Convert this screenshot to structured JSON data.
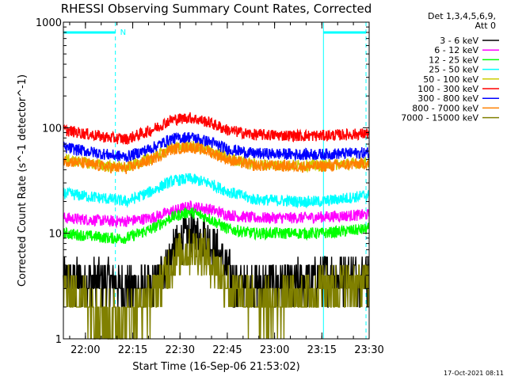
{
  "chart_data": {
    "type": "line",
    "title": "RHESSI Observing Summary Count Rates, Corrected",
    "xlabel": "Start Time (16-Sep-06 21:53:02)",
    "ylabel": "Corrected Count Rate (s^-1 detector^-1)",
    "y_scale": "log",
    "ylim": [
      1,
      1000
    ],
    "y_ticks": [
      {
        "value": 1,
        "label": "1"
      },
      {
        "value": 10,
        "label": "10"
      },
      {
        "value": 100,
        "label": "100"
      },
      {
        "value": 1000,
        "label": "1000"
      }
    ],
    "x_range_minutes": [
      0,
      97
    ],
    "x_ticks": [
      {
        "minute": 7,
        "label": "22:00"
      },
      {
        "minute": 22,
        "label": "22:15"
      },
      {
        "minute": 37,
        "label": "22:30"
      },
      {
        "minute": 52,
        "label": "22:45"
      },
      {
        "minute": 67,
        "label": "23:00"
      },
      {
        "minute": 82,
        "label": "23:15"
      },
      {
        "minute": 97,
        "label": "23:30"
      }
    ],
    "legend_header": [
      "Det 1,3,4,5,6,9,",
      "Att 0"
    ],
    "night_marker": "N",
    "solid_vertical_lines_minutes": [
      0,
      82.5
    ],
    "dashed_vertical_lines_minutes": [
      16.5,
      96
    ],
    "orbit_bars": [
      [
        0,
        16.5
      ],
      [
        82.5,
        96
      ]
    ],
    "series": [
      {
        "name": "3 - 6 keV",
        "color": "#000000",
        "x": [
          0,
          15,
          20,
          28,
          31,
          34,
          37,
          40,
          43,
          46,
          49,
          52,
          55,
          65,
          80,
          82,
          97
        ],
        "values": [
          3.5,
          3.5,
          3.0,
          3.0,
          4.0,
          6.0,
          8.5,
          9.5,
          9.5,
          8.5,
          6.5,
          4.5,
          3.2,
          3.2,
          3.5,
          4.0,
          4.0
        ]
      },
      {
        "name": "6 - 12 keV",
        "color": "#ff00ff",
        "x": [
          0,
          15,
          20,
          28,
          34,
          40,
          46,
          52,
          60,
          75,
          97
        ],
        "values": [
          14,
          13,
          13,
          14,
          16,
          18,
          17,
          15,
          14,
          14,
          15
        ]
      },
      {
        "name": "12 - 25 keV",
        "color": "#00ff00",
        "x": [
          0,
          15,
          20,
          28,
          34,
          40,
          46,
          52,
          60,
          75,
          82,
          97
        ],
        "values": [
          10,
          9,
          9,
          11,
          14,
          16,
          14,
          11,
          10,
          10,
          10,
          11
        ]
      },
      {
        "name": "25 - 50 keV",
        "color": "#00ffff",
        "x": [
          0,
          15,
          20,
          28,
          34,
          40,
          46,
          52,
          60,
          75,
          82,
          97
        ],
        "values": [
          24,
          21,
          20,
          25,
          31,
          33,
          30,
          25,
          21,
          20,
          20,
          23
        ]
      },
      {
        "name": "50 - 100 keV",
        "color": "#cccc00",
        "x": [
          0,
          15,
          20,
          28,
          34,
          40,
          46,
          52,
          60,
          75,
          82,
          97
        ],
        "values": [
          50,
          43,
          42,
          52,
          64,
          68,
          62,
          52,
          45,
          44,
          44,
          47
        ]
      },
      {
        "name": "100 - 300 keV",
        "color": "#ff0000",
        "x": [
          0,
          15,
          20,
          28,
          34,
          40,
          46,
          52,
          60,
          75,
          82,
          97
        ],
        "values": [
          95,
          80,
          78,
          95,
          118,
          125,
          113,
          95,
          86,
          84,
          84,
          88
        ]
      },
      {
        "name": "300 - 800 keV",
        "color": "#0000ff",
        "x": [
          0,
          15,
          20,
          28,
          34,
          40,
          46,
          52,
          60,
          75,
          82,
          97
        ],
        "values": [
          65,
          55,
          53,
          64,
          78,
          82,
          74,
          63,
          57,
          56,
          56,
          58
        ]
      },
      {
        "name": "800 - 7000 keV",
        "color": "#ff8000",
        "x": [
          0,
          15,
          20,
          28,
          34,
          40,
          46,
          52,
          60,
          75,
          82,
          97
        ],
        "values": [
          49,
          42,
          41,
          50,
          62,
          66,
          60,
          50,
          44,
          43,
          43,
          46
        ]
      },
      {
        "name": "7000 - 15000 keV",
        "color": "#808000",
        "x": [
          0,
          11,
          15,
          20,
          28,
          31,
          34,
          37,
          40,
          43,
          46,
          49,
          52,
          55,
          60,
          70,
          80,
          82,
          97
        ],
        "values": [
          3.0,
          2.0,
          1.6,
          1.6,
          2.5,
          3.5,
          5.0,
          6.5,
          7.0,
          7.0,
          6.0,
          4.5,
          3.2,
          2.5,
          2.3,
          2.3,
          2.6,
          3.2,
          3.3
        ]
      }
    ]
  },
  "footer": {
    "timestamp": "17-Oct-2021 08:11"
  }
}
